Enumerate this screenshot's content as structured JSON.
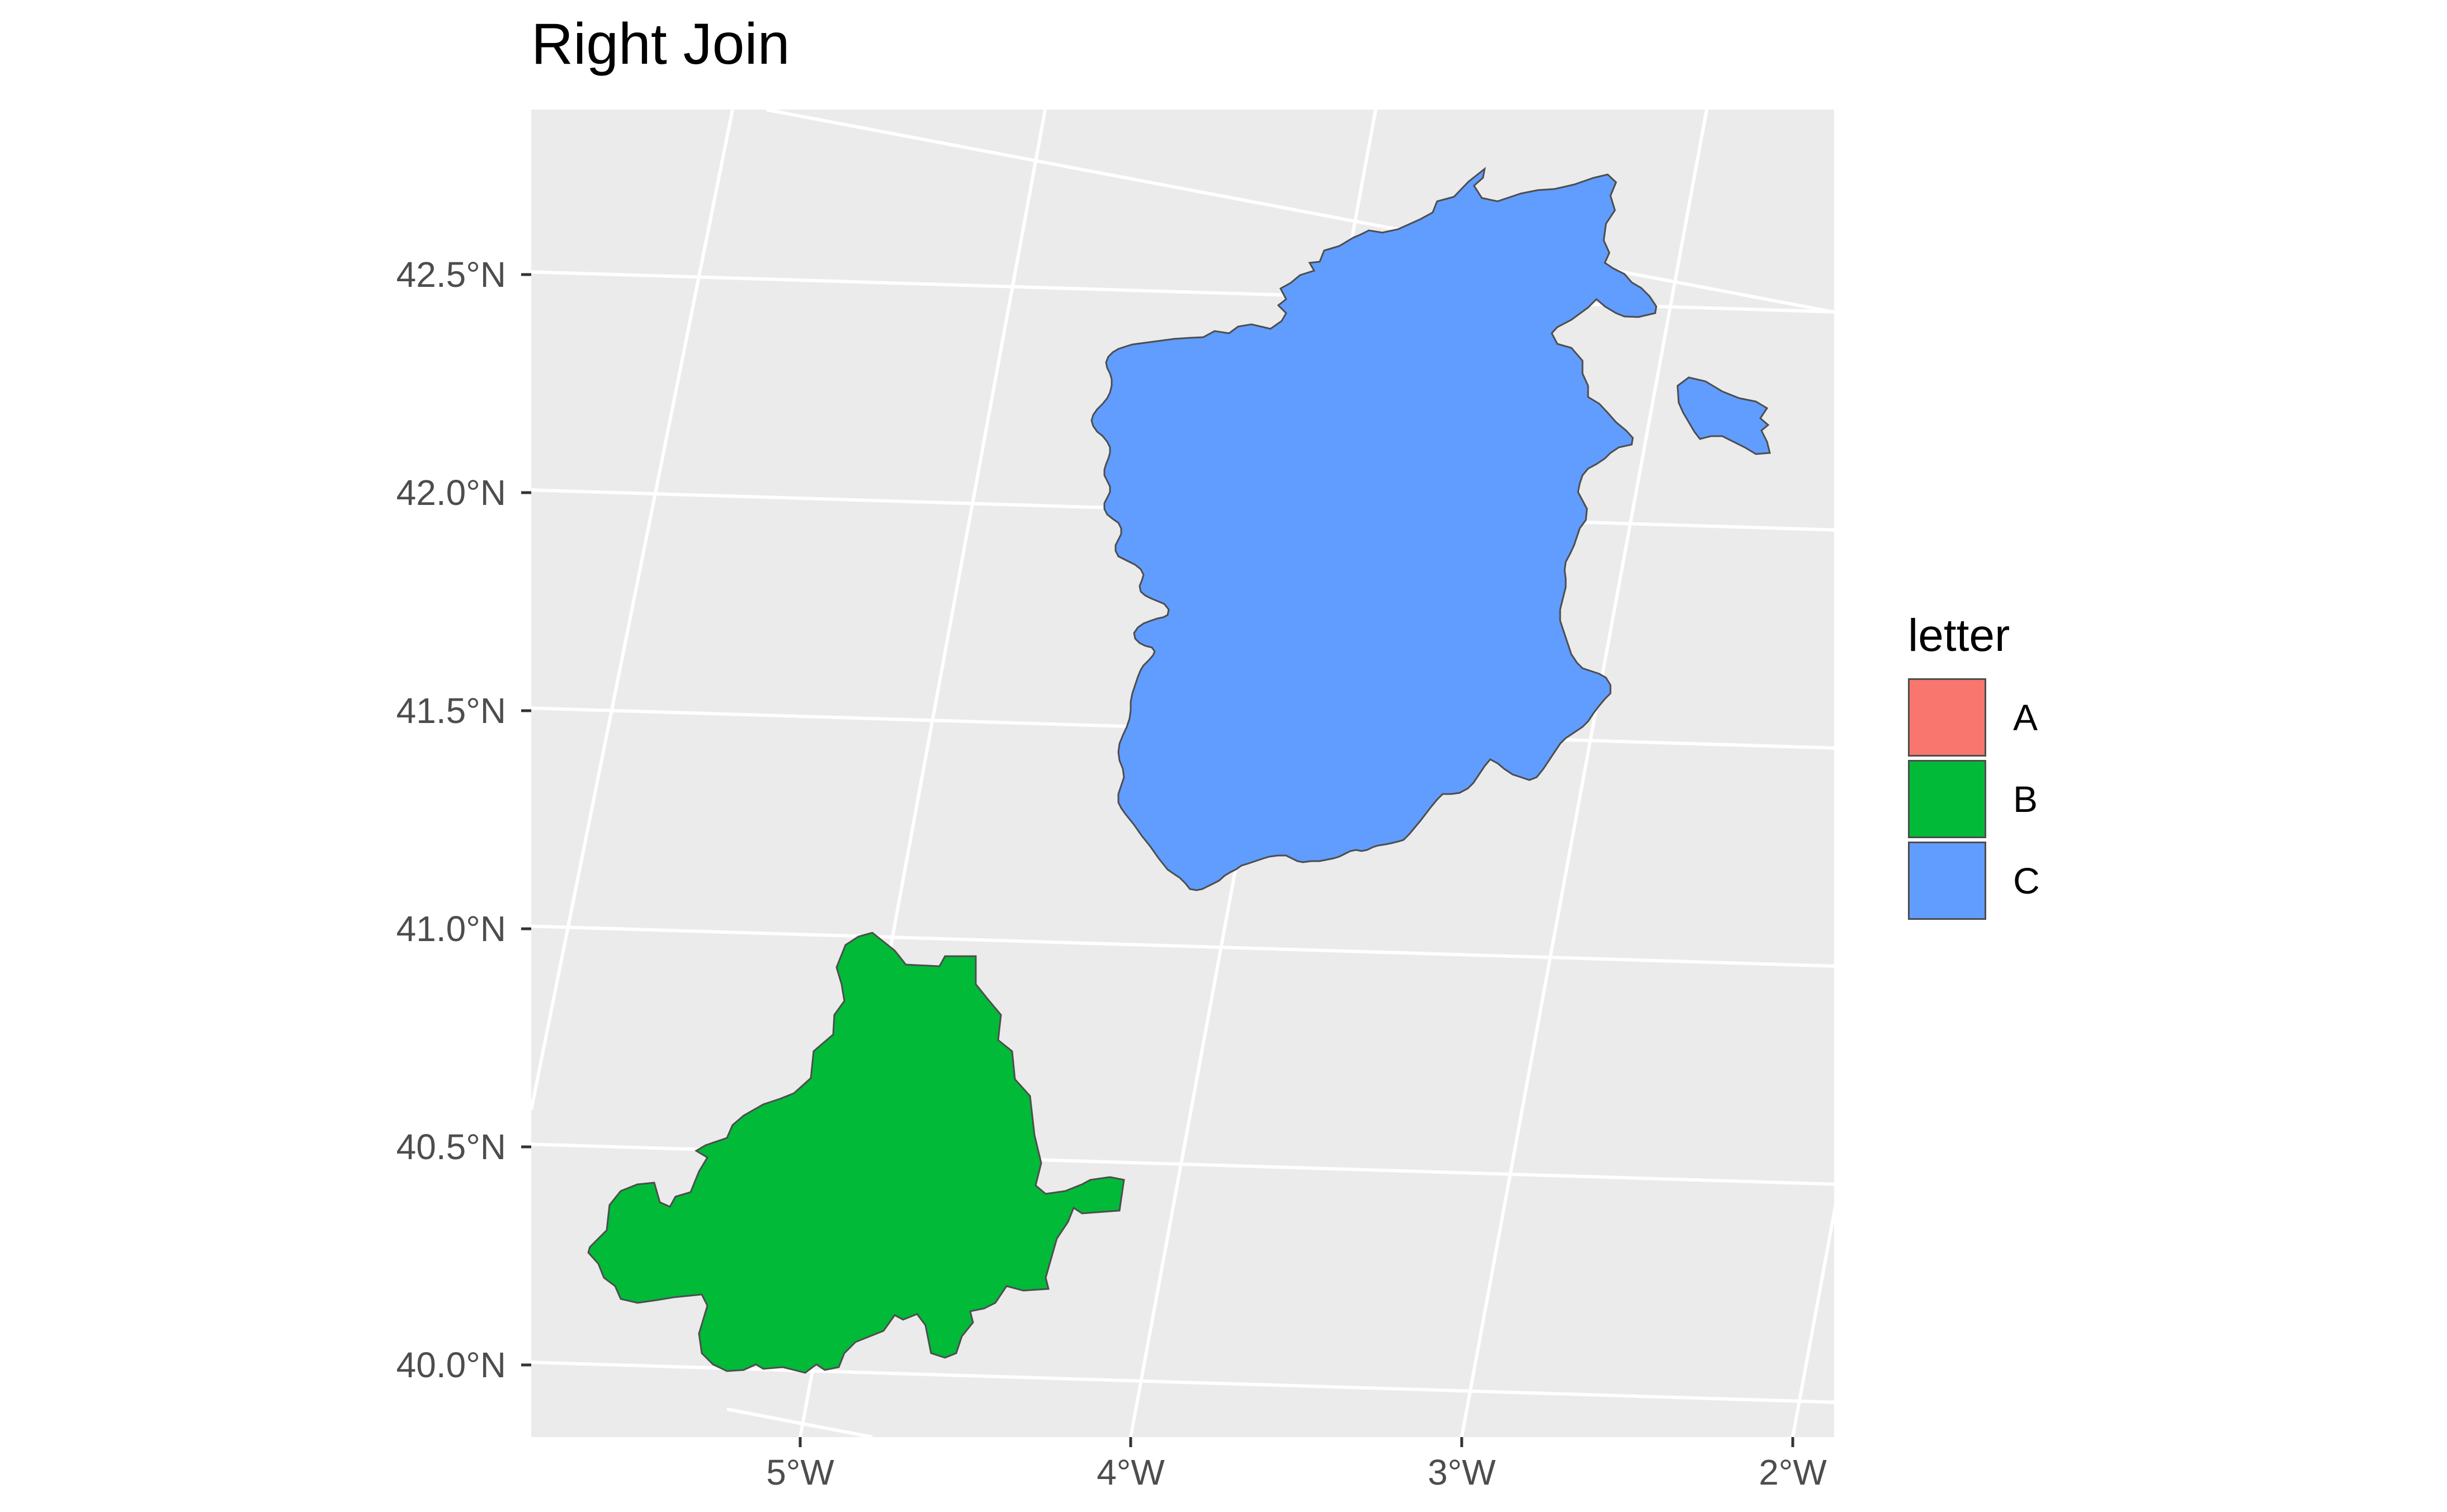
{
  "title": "Right Join",
  "chart_data": {
    "type": "map",
    "title": "Right Join",
    "crs": "projected (graticule lines tilted)",
    "x_ticks": [
      "5°W",
      "4°W",
      "3°W",
      "2°W"
    ],
    "y_ticks": [
      "42.5°N",
      "42.0°N",
      "41.5°N",
      "41.0°N",
      "40.5°N",
      "40.0°N"
    ],
    "x_range_deg": [
      -5.8,
      -1.9
    ],
    "y_range_deg": [
      39.85,
      42.85
    ],
    "panel_background": "#ebebeb",
    "grid": true,
    "legend_placement": "right",
    "regions": [
      {
        "letter": "B",
        "approx_lon_range": [
          -5.6,
          -3.8
        ],
        "approx_lat_range": [
          40.0,
          41.0
        ]
      },
      {
        "letter": "C",
        "approx_lon_range": [
          -3.6,
          -2.0
        ],
        "approx_lat_range": [
          41.1,
          42.7
        ]
      }
    ]
  },
  "legend": {
    "title": "letter",
    "items": [
      {
        "label": "A",
        "color": "#F8766D"
      },
      {
        "label": "B",
        "color": "#00BA38"
      },
      {
        "label": "C",
        "color": "#619CFF"
      }
    ]
  }
}
